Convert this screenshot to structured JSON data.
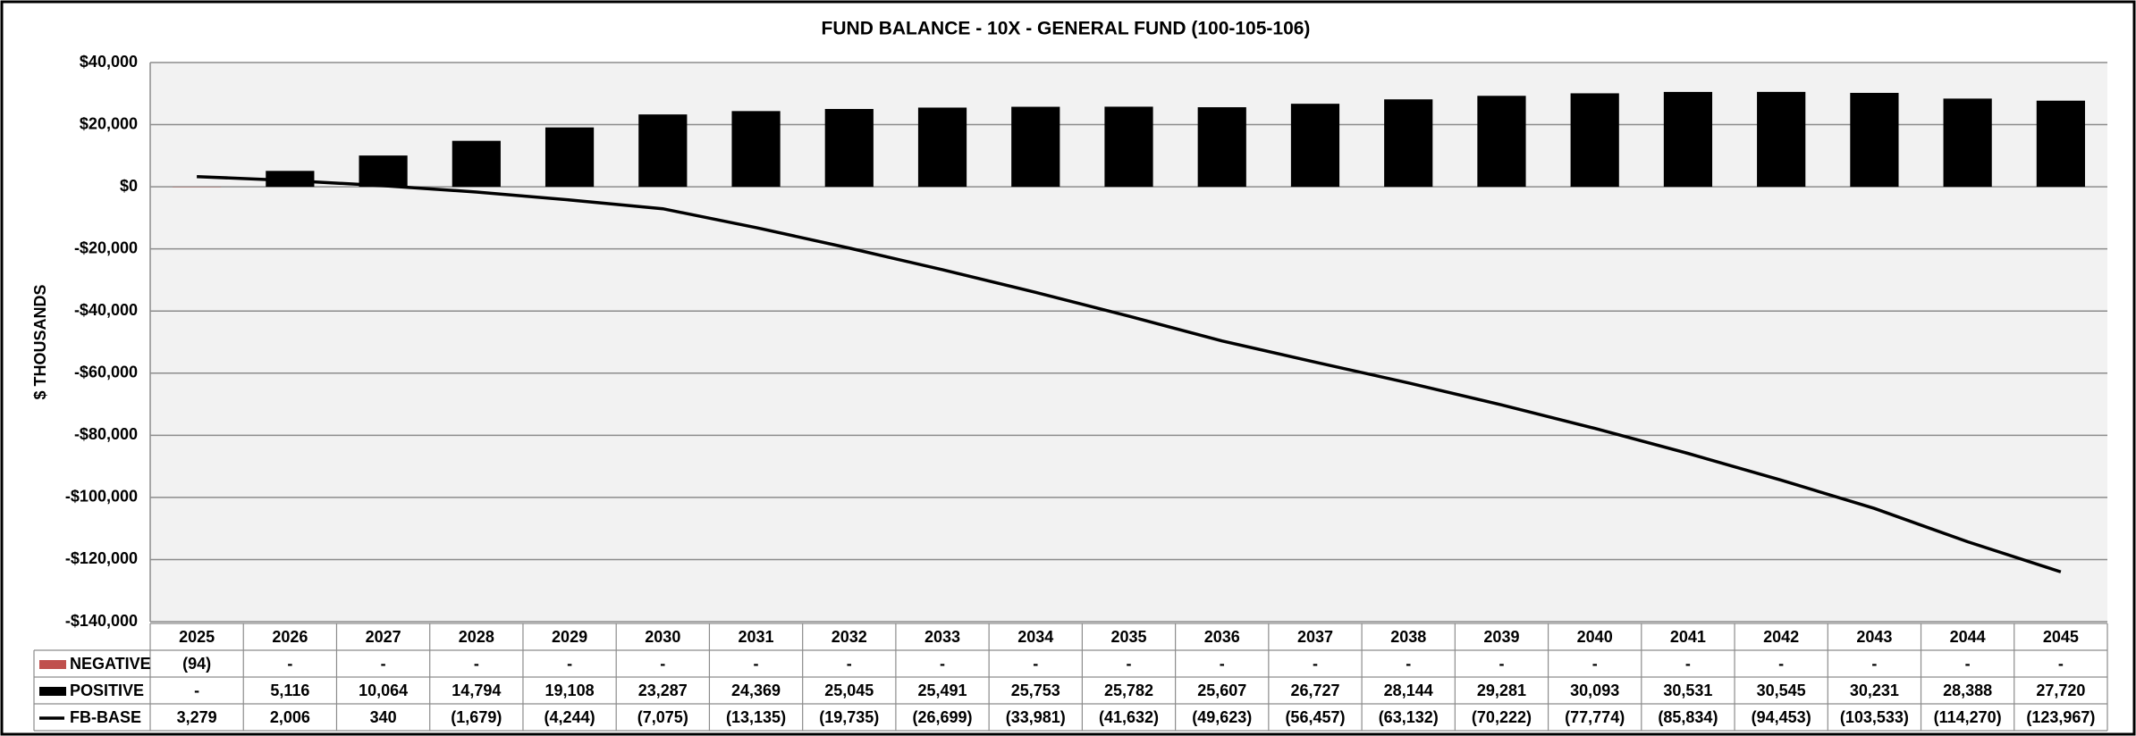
{
  "chart_data": {
    "type": "bar",
    "title": "FUND BALANCE - 10X - GENERAL FUND (100-105-106)",
    "y_label": "$ THOUSANDS",
    "categories": [
      "2025",
      "2026",
      "2027",
      "2028",
      "2029",
      "2030",
      "2031",
      "2032",
      "2033",
      "2034",
      "2035",
      "2036",
      "2037",
      "2038",
      "2039",
      "2040",
      "2041",
      "2042",
      "2043",
      "2044",
      "2045"
    ],
    "series": [
      {
        "name": "NEGATIVE",
        "type": "bar",
        "color": "#c0504d",
        "values": [
          -94,
          0,
          0,
          0,
          0,
          0,
          0,
          0,
          0,
          0,
          0,
          0,
          0,
          0,
          0,
          0,
          0,
          0,
          0,
          0,
          0
        ],
        "value_labels": [
          "(94)",
          "-",
          "-",
          "-",
          "-",
          "-",
          "-",
          "-",
          "-",
          "-",
          "-",
          "-",
          "-",
          "-",
          "-",
          "-",
          "-",
          "-",
          "-",
          "-",
          "-"
        ]
      },
      {
        "name": "POSITIVE",
        "type": "bar",
        "color": "#000000",
        "values": [
          0,
          5116,
          10064,
          14794,
          19108,
          23287,
          24369,
          25045,
          25491,
          25753,
          25782,
          25607,
          26727,
          28144,
          29281,
          30093,
          30531,
          30545,
          30231,
          28388,
          27720
        ],
        "value_labels": [
          "-",
          "5,116",
          "10,064",
          "14,794",
          "19,108",
          "23,287",
          "24,369",
          "25,045",
          "25,491",
          "25,753",
          "25,782",
          "25,607",
          "26,727",
          "28,144",
          "29,281",
          "30,093",
          "30,531",
          "30,545",
          "30,231",
          "28,388",
          "27,720"
        ]
      },
      {
        "name": "FB-BASE",
        "type": "line",
        "color": "#000000",
        "values": [
          3279,
          2006,
          340,
          -1679,
          -4244,
          -7075,
          -13135,
          -19735,
          -26699,
          -33981,
          -41632,
          -49623,
          -56457,
          -63132,
          -70222,
          -77774,
          -85834,
          -94453,
          -103533,
          -114270,
          -123967
        ],
        "value_labels": [
          "3,279",
          "2,006",
          "340",
          "(1,679)",
          "(4,244)",
          "(7,075)",
          "(13,135)",
          "(19,735)",
          "(26,699)",
          "(33,981)",
          "(41,632)",
          "(49,623)",
          "(56,457)",
          "(63,132)",
          "(70,222)",
          "(77,774)",
          "(85,834)",
          "(94,453)",
          "(103,533)",
          "(114,270)",
          "(123,967)"
        ]
      }
    ],
    "ylim": [
      -140000,
      40000
    ],
    "yticks": [
      {
        "value": -140000,
        "label": "-$140,000"
      },
      {
        "value": -120000,
        "label": "-$120,000"
      },
      {
        "value": -100000,
        "label": "-$100,000"
      },
      {
        "value": -80000,
        "label": "-$80,000"
      },
      {
        "value": -60000,
        "label": "-$60,000"
      },
      {
        "value": -40000,
        "label": "-$40,000"
      },
      {
        "value": -20000,
        "label": "-$20,000"
      },
      {
        "value": 0,
        "label": "$0"
      },
      {
        "value": 20000,
        "label": "$20,000"
      },
      {
        "value": 40000,
        "label": "$40,000"
      }
    ],
    "grid": true,
    "data_table": true
  }
}
